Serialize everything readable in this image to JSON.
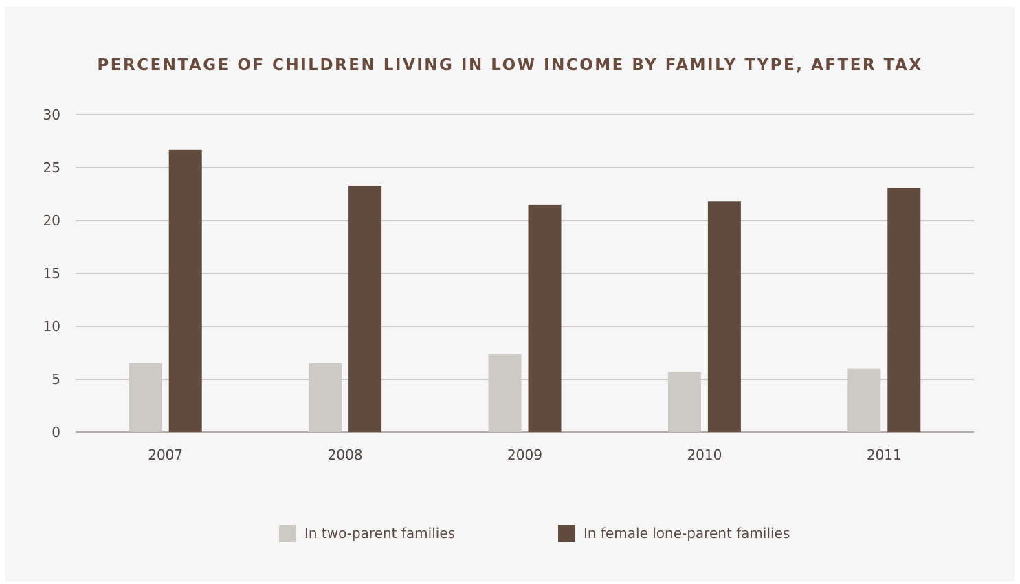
{
  "chart_data": {
    "type": "bar",
    "title": "PERCENTAGE OF CHILDREN LIVING IN LOW INCOME BY FAMILY TYPE, AFTER TAX",
    "categories": [
      "2007",
      "2008",
      "2009",
      "2010",
      "2011"
    ],
    "series": [
      {
        "name": "In two-parent families",
        "values": [
          6.5,
          6.5,
          7.4,
          5.7,
          6.0
        ],
        "color": "#cdc9c5"
      },
      {
        "name": "In female lone-parent families",
        "values": [
          26.7,
          23.3,
          21.5,
          21.8,
          23.1
        ],
        "color": "#614a3e"
      }
    ],
    "ylim": [
      0,
      30
    ],
    "yticks": [
      "0",
      "5",
      "10",
      "15",
      "20",
      "25",
      "30"
    ],
    "grid": true,
    "legend_position": "bottom"
  }
}
